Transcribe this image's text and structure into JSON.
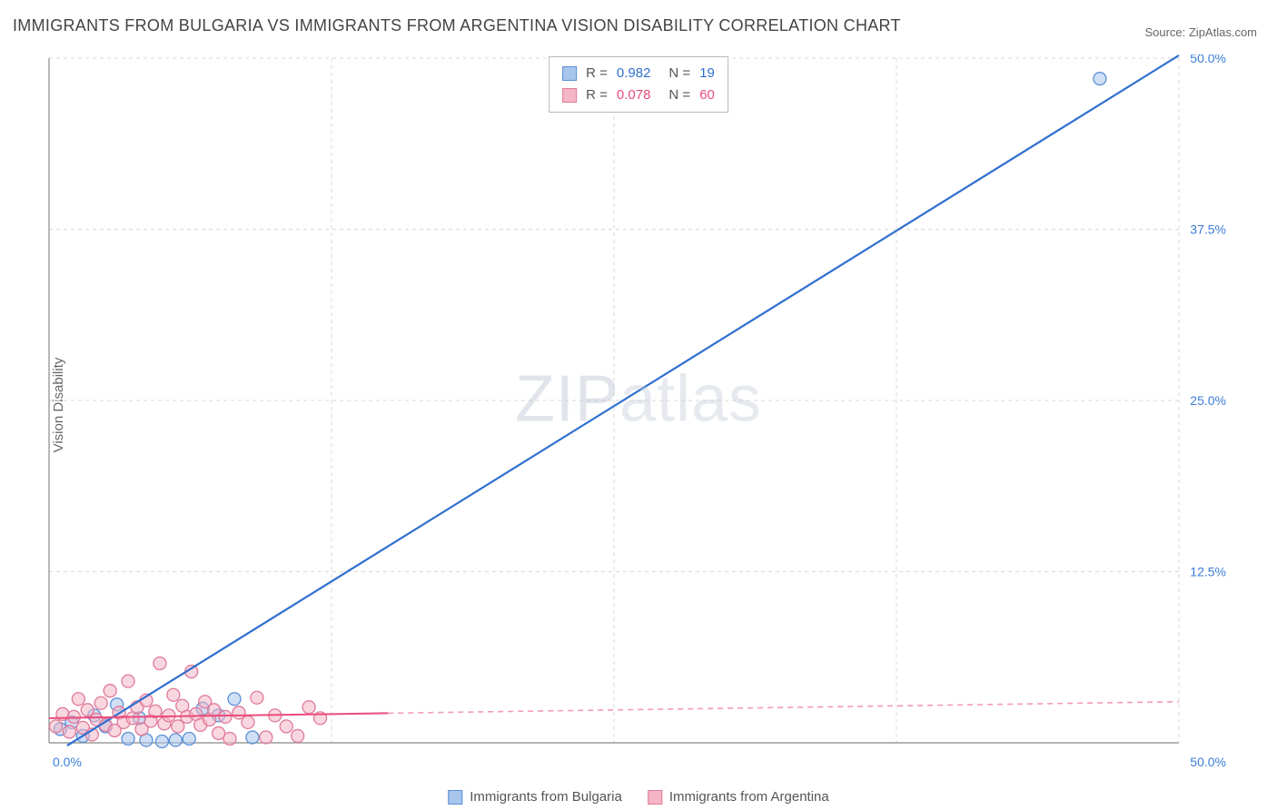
{
  "title": "IMMIGRANTS FROM BULGARIA VS IMMIGRANTS FROM ARGENTINA VISION DISABILITY CORRELATION CHART",
  "source": "Source: ZipAtlas.com",
  "ylabel": "Vision Disability",
  "watermark": "ZIPatlas",
  "chart": {
    "type": "scatter-with-regression",
    "xlim": [
      0,
      50
    ],
    "ylim": [
      0,
      50
    ],
    "y_ticks": [
      12.5,
      25.0,
      37.5,
      50.0
    ],
    "y_tick_labels": [
      "12.5%",
      "25.0%",
      "37.5%",
      "50.0%"
    ],
    "x_origin_label": "0.0%",
    "x_max_label": "50.0%",
    "grid_color": "#d9d9d9",
    "axis_color": "#888888",
    "background_color": "#ffffff",
    "axis_label_color": "#3b7dd8",
    "series": [
      {
        "name": "Immigrants from Bulgaria",
        "color_fill": "#a8c5ec",
        "color_stroke": "#5a8fd6",
        "line_color": "#2f6fd0",
        "line_dash": "none",
        "R": "0.982",
        "N": "19",
        "regression": {
          "x1": 0.8,
          "y1": -0.2,
          "x2": 50,
          "y2": 50.2
        },
        "points": [
          {
            "x": 0.5,
            "y": 1.0
          },
          {
            "x": 1.0,
            "y": 1.5
          },
          {
            "x": 1.5,
            "y": 0.5
          },
          {
            "x": 2.0,
            "y": 2.0
          },
          {
            "x": 2.5,
            "y": 1.2
          },
          {
            "x": 3.0,
            "y": 2.8
          },
          {
            "x": 3.5,
            "y": 0.3
          },
          {
            "x": 4.0,
            "y": 1.8
          },
          {
            "x": 4.3,
            "y": 0.2
          },
          {
            "x": 5.0,
            "y": 0.1
          },
          {
            "x": 5.6,
            "y": 0.2
          },
          {
            "x": 6.2,
            "y": 0.3
          },
          {
            "x": 6.8,
            "y": 2.5
          },
          {
            "x": 7.5,
            "y": 2.0
          },
          {
            "x": 8.2,
            "y": 3.2
          },
          {
            "x": 9.0,
            "y": 0.4
          },
          {
            "x": 46.5,
            "y": 48.5
          }
        ]
      },
      {
        "name": "Immigrants from Argentina",
        "color_fill": "#f4b6c6",
        "color_stroke": "#e07a9a",
        "line_color": "#e94b7a",
        "line_dash": "6,5",
        "R": "0.078",
        "N": "60",
        "regression_solid_until": 15,
        "regression": {
          "x1": 0,
          "y1": 1.8,
          "x2": 50,
          "y2": 3.0
        },
        "points": [
          {
            "x": 0.3,
            "y": 1.2
          },
          {
            "x": 0.6,
            "y": 2.1
          },
          {
            "x": 0.9,
            "y": 0.8
          },
          {
            "x": 1.1,
            "y": 1.9
          },
          {
            "x": 1.3,
            "y": 3.2
          },
          {
            "x": 1.5,
            "y": 1.1
          },
          {
            "x": 1.7,
            "y": 2.4
          },
          {
            "x": 1.9,
            "y": 0.6
          },
          {
            "x": 2.1,
            "y": 1.7
          },
          {
            "x": 2.3,
            "y": 2.9
          },
          {
            "x": 2.5,
            "y": 1.3
          },
          {
            "x": 2.7,
            "y": 3.8
          },
          {
            "x": 2.9,
            "y": 0.9
          },
          {
            "x": 3.1,
            "y": 2.2
          },
          {
            "x": 3.3,
            "y": 1.5
          },
          {
            "x": 3.5,
            "y": 4.5
          },
          {
            "x": 3.7,
            "y": 1.8
          },
          {
            "x": 3.9,
            "y": 2.6
          },
          {
            "x": 4.1,
            "y": 1.0
          },
          {
            "x": 4.3,
            "y": 3.1
          },
          {
            "x": 4.5,
            "y": 1.6
          },
          {
            "x": 4.7,
            "y": 2.3
          },
          {
            "x": 4.9,
            "y": 5.8
          },
          {
            "x": 5.1,
            "y": 1.4
          },
          {
            "x": 5.3,
            "y": 2.0
          },
          {
            "x": 5.5,
            "y": 3.5
          },
          {
            "x": 5.7,
            "y": 1.2
          },
          {
            "x": 5.9,
            "y": 2.7
          },
          {
            "x": 6.1,
            "y": 1.9
          },
          {
            "x": 6.3,
            "y": 5.2
          },
          {
            "x": 6.5,
            "y": 2.1
          },
          {
            "x": 6.7,
            "y": 1.3
          },
          {
            "x": 6.9,
            "y": 3.0
          },
          {
            "x": 7.1,
            "y": 1.7
          },
          {
            "x": 7.3,
            "y": 2.4
          },
          {
            "x": 7.5,
            "y": 0.7
          },
          {
            "x": 7.8,
            "y": 1.9
          },
          {
            "x": 8.0,
            "y": 0.3
          },
          {
            "x": 8.4,
            "y": 2.2
          },
          {
            "x": 8.8,
            "y": 1.5
          },
          {
            "x": 9.2,
            "y": 3.3
          },
          {
            "x": 9.6,
            "y": 0.4
          },
          {
            "x": 10.0,
            "y": 2.0
          },
          {
            "x": 10.5,
            "y": 1.2
          },
          {
            "x": 11.0,
            "y": 0.5
          },
          {
            "x": 11.5,
            "y": 2.6
          },
          {
            "x": 12.0,
            "y": 1.8
          }
        ]
      }
    ]
  },
  "legend_bottom": [
    {
      "label": "Immigrants from Bulgaria",
      "fill": "#a8c5ec",
      "stroke": "#5a8fd6"
    },
    {
      "label": "Immigrants from Argentina",
      "fill": "#f4b6c6",
      "stroke": "#e07a9a"
    }
  ]
}
